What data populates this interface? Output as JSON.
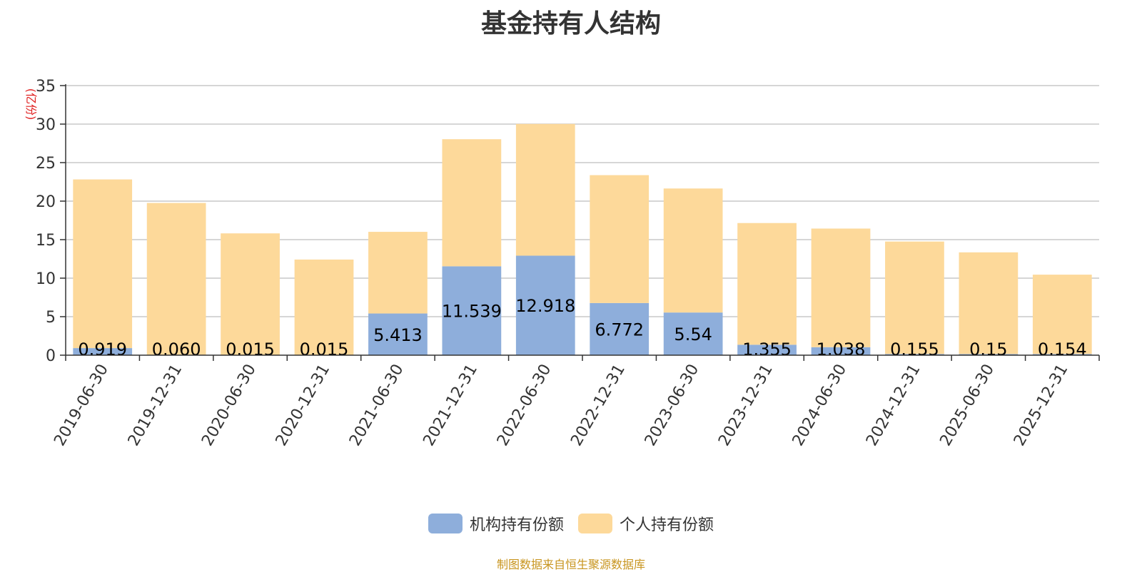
{
  "chart_data": {
    "type": "bar",
    "stacked": true,
    "title": "基金持有人结构",
    "ylabel": "(亿份)",
    "xlabel": "",
    "ylim": [
      0,
      35
    ],
    "yticks": [
      0,
      5,
      10,
      15,
      20,
      25,
      30,
      35
    ],
    "grid": true,
    "legend_position": "bottom",
    "categories": [
      "2019-06-30",
      "2019-12-31",
      "2020-06-30",
      "2020-12-31",
      "2021-06-30",
      "2021-12-31",
      "2022-06-30",
      "2022-12-31",
      "2023-06-30",
      "2023-12-31",
      "2024-06-30",
      "2024-12-31",
      "2025-06-30",
      "2025-12-31"
    ],
    "series": [
      {
        "name": "机构持有份额",
        "color": "#8eaedb",
        "values": [
          0.919,
          0.06,
          0.015,
          0.015,
          5.413,
          11.539,
          12.918,
          6.772,
          5.54,
          1.355,
          1.038,
          0.155,
          0.15,
          0.154
        ],
        "labels": [
          "0.919",
          "0.060",
          "0.015",
          "0.015",
          "5.413",
          "11.539",
          "12.918",
          "6.772",
          "5.54",
          "1.355",
          "1.038",
          "0.155",
          "0.15",
          "0.154"
        ]
      },
      {
        "name": "个人持有份额",
        "color": "#fdd99a",
        "values": [
          21.9,
          19.7,
          15.8,
          12.4,
          10.6,
          16.5,
          17.1,
          16.6,
          16.1,
          15.8,
          15.4,
          14.6,
          13.2,
          10.3
        ]
      }
    ]
  },
  "footer": {
    "source": "制图数据来自恒生聚源数据库"
  }
}
